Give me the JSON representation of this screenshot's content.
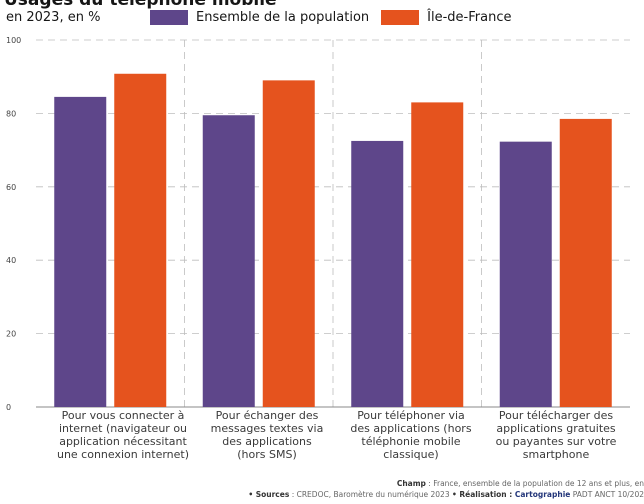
{
  "title": "Usages du téléphone mobile",
  "subtitle": "en 2023, en %",
  "colors": {
    "series_1": "#5e468a",
    "series_2": "#e5531e",
    "grid": "#bdbdbd"
  },
  "chart_data": {
    "type": "bar",
    "categories": [
      "Pour vous connecter à\ninternet (navigateur ou\napplication nécessitant\nune connexion internet)",
      "Pour échanger des\nmessages textes via\ndes applications\n(hors SMS)",
      "Pour téléphoner via\ndes applications (hors\ntéléphonie mobile\nclassique)",
      "Pour télécharger des\napplications gratuites\nou payantes sur votre\nsmartphone"
    ],
    "series": [
      {
        "name": "Ensemble de la population",
        "values": [
          84.5,
          79.5,
          72.5,
          72.3
        ]
      },
      {
        "name": "Île-de-France",
        "values": [
          90.8,
          89,
          83,
          78.5
        ]
      }
    ],
    "y_ticks": [
      "0",
      "20",
      "40",
      "60",
      "80",
      "100"
    ],
    "ylim": [
      0,
      100
    ],
    "grid": true,
    "legend_position": "top"
  },
  "footer": {
    "champ_label": "Champ",
    "champ_text": " : France, ensemble de la population de 12 ans et plus, en",
    "sources_label": "• Sources",
    "sources_text": " : CREDOC, Baromètre du numérique 2023 ",
    "realisation_label": "• Réalisation : ",
    "brand": "Cartographie",
    "credit": " PADT ANCT 10/202"
  }
}
